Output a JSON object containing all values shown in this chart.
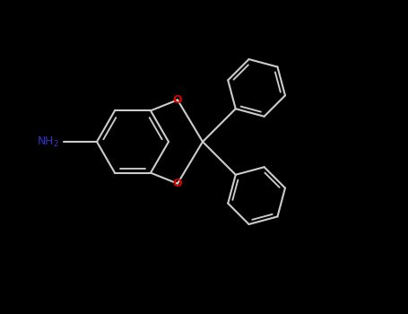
{
  "background_color": "#000000",
  "bond_color": "#cccccc",
  "nh2_color": "#3333cc",
  "oxygen_color": "#dd0000",
  "figsize": [
    4.55,
    3.5
  ],
  "dpi": 100,
  "bond_lw": 1.5,
  "ring_lw": 1.5
}
